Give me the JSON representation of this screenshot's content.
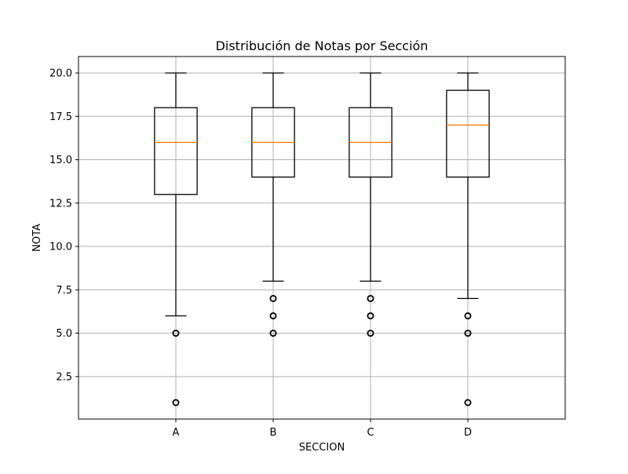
{
  "chart_data": {
    "type": "boxplot",
    "title": "Distribución de Notas por Sección",
    "xlabel": "SECCION",
    "ylabel": "NOTA",
    "ylim": [
      0.05,
      20.95
    ],
    "yticks": [
      2.5,
      5.0,
      7.5,
      10.0,
      12.5,
      15.0,
      17.5,
      20.0
    ],
    "ytick_labels": [
      "2.5",
      "5.0",
      "7.5",
      "10.0",
      "12.5",
      "15.0",
      "17.5",
      "20.0"
    ],
    "grid": true,
    "categories": [
      "A",
      "B",
      "C",
      "D"
    ],
    "boxes": [
      {
        "category": "A",
        "whisker_low": 6,
        "q1": 13,
        "median": 16,
        "q3": 18,
        "whisker_high": 20,
        "outliers": [
          5,
          1
        ]
      },
      {
        "category": "B",
        "whisker_low": 8,
        "q1": 14,
        "median": 16,
        "q3": 18,
        "whisker_high": 20,
        "outliers": [
          7,
          6,
          5
        ]
      },
      {
        "category": "C",
        "whisker_low": 8,
        "q1": 14,
        "median": 16,
        "q3": 18,
        "whisker_high": 20,
        "outliers": [
          7,
          6,
          5
        ]
      },
      {
        "category": "D",
        "whisker_low": 7,
        "q1": 14,
        "median": 17,
        "q3": 19,
        "whisker_high": 20,
        "outliers": [
          6,
          5,
          1
        ]
      }
    ],
    "colors": {
      "box": "#000000",
      "median": "#ff7f0e",
      "grid": "#b0b0b0"
    }
  }
}
